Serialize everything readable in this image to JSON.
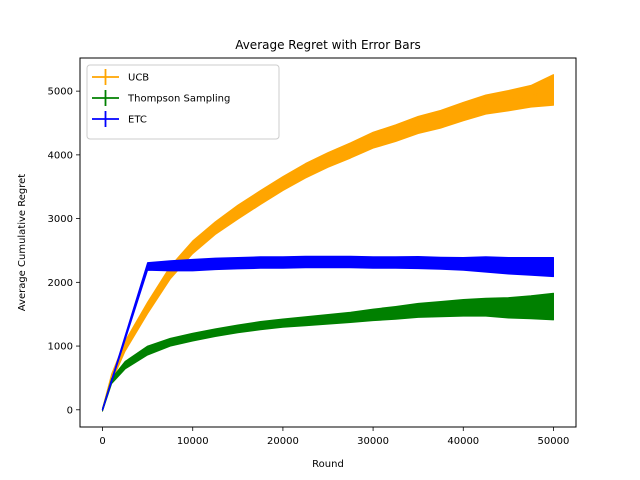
{
  "chart_data": {
    "type": "line",
    "title": "Average Regret with Error Bars",
    "xlabel": "Round",
    "ylabel": "Average Cumulative Regret",
    "xlim": [
      -2500,
      52500
    ],
    "ylim": [
      -270,
      5520
    ],
    "xticks": [
      0,
      10000,
      20000,
      30000,
      40000,
      50000
    ],
    "xtick_labels": [
      "0",
      "10000",
      "20000",
      "30000",
      "40000",
      "50000"
    ],
    "yticks": [
      0,
      1000,
      2000,
      3000,
      4000,
      5000
    ],
    "ytick_labels": [
      "0",
      "1000",
      "2000",
      "3000",
      "4000",
      "5000"
    ],
    "grid": false,
    "legend_position": "top-left",
    "series": [
      {
        "name": "UCB",
        "color": "#ffa500",
        "style": "line-with-error-band",
        "x": [
          0,
          1000,
          2500,
          5000,
          7500,
          10000,
          12500,
          15000,
          17500,
          20000,
          22500,
          25000,
          27500,
          30000,
          32500,
          35000,
          37500,
          40000,
          42500,
          45000,
          47500,
          50000
        ],
        "y": [
          0,
          500,
          1000,
          1600,
          2150,
          2550,
          2850,
          3100,
          3330,
          3550,
          3750,
          3920,
          4070,
          4230,
          4340,
          4470,
          4560,
          4680,
          4790,
          4850,
          4920,
          5020
        ],
        "err": [
          20,
          60,
          80,
          90,
          100,
          100,
          100,
          110,
          110,
          110,
          115,
          115,
          120,
          125,
          130,
          135,
          140,
          145,
          150,
          160,
          170,
          240
        ]
      },
      {
        "name": "Thompson Sampling",
        "color": "#008000",
        "style": "line-with-error-band",
        "x": [
          0,
          1000,
          2500,
          5000,
          7500,
          10000,
          12500,
          15000,
          17500,
          20000,
          22500,
          25000,
          27500,
          30000,
          32500,
          35000,
          37500,
          40000,
          42500,
          45000,
          47500,
          50000
        ],
        "y": [
          0,
          450,
          700,
          930,
          1060,
          1140,
          1210,
          1270,
          1320,
          1360,
          1390,
          1420,
          1450,
          1490,
          1520,
          1560,
          1580,
          1600,
          1610,
          1600,
          1610,
          1620
        ],
        "err": [
          20,
          40,
          60,
          70,
          60,
          60,
          60,
          60,
          65,
          65,
          70,
          75,
          80,
          90,
          100,
          110,
          120,
          130,
          140,
          160,
          180,
          210
        ]
      },
      {
        "name": "ETC",
        "color": "#0000ff",
        "style": "line-with-error-band",
        "x": [
          0,
          5000,
          7500,
          10000,
          12500,
          15000,
          17500,
          20000,
          22500,
          25000,
          27500,
          30000,
          32500,
          35000,
          37500,
          40000,
          42500,
          45000,
          47500,
          50000
        ],
        "y": [
          0,
          2250,
          2260,
          2270,
          2290,
          2300,
          2310,
          2310,
          2320,
          2320,
          2320,
          2310,
          2310,
          2310,
          2300,
          2290,
          2280,
          2260,
          2250,
          2240
        ],
        "err": [
          10,
          60,
          80,
          90,
          90,
          90,
          90,
          90,
          90,
          90,
          90,
          90,
          90,
          95,
          95,
          100,
          120,
          130,
          140,
          150
        ]
      }
    ]
  }
}
